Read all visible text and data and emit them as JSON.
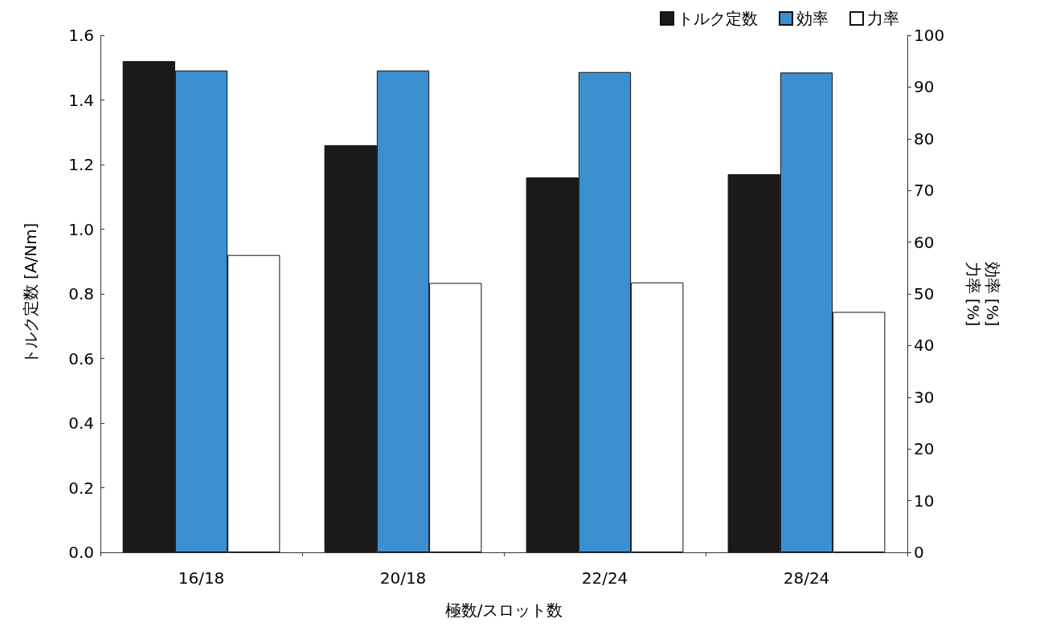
{
  "chart_data": {
    "type": "bar",
    "xlabel": "極数/スロット数",
    "ylabel": "トルク定数 [A/Nm]",
    "y2label": "効率 [%]\n力率 [%]",
    "categories": [
      "16/18",
      "20/18",
      "22/24",
      "28/24"
    ],
    "series": [
      {
        "name": "トルク定数",
        "color": "#1a1a1a",
        "values": [
          1.52,
          1.26,
          1.16,
          1.17
        ]
      },
      {
        "name": "効率",
        "color": "#3b8fd0",
        "values": [
          93.2,
          93.2,
          92.9,
          92.8
        ],
        "axis": "y2"
      },
      {
        "name": "力率",
        "color": "#ffffff",
        "values": [
          57.5,
          52.1,
          52.2,
          46.5
        ],
        "axis": "y2"
      }
    ],
    "ylim": [
      0,
      1.6
    ],
    "yticks": [
      {
        "value": 0,
        "label": "0.0"
      },
      0.2,
      0.4,
      0.6,
      0.8,
      {
        "value": 1,
        "label": "1.0"
      },
      1.2,
      1.4,
      1.6
    ],
    "y2lim": [
      0,
      100
    ],
    "y2ticks": [
      0,
      10,
      20,
      30,
      40,
      50,
      60,
      70,
      80,
      90,
      100
    ],
    "grid": false,
    "legend": "top right"
  }
}
